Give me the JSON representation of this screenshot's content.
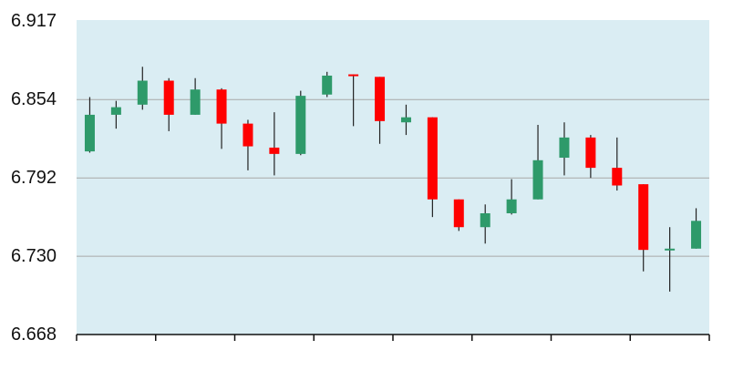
{
  "chart_data": {
    "type": "candlestick",
    "title": "",
    "xlabel": "",
    "ylabel": "",
    "ylim": [
      6.668,
      6.917
    ],
    "y_ticks": [
      "6.917",
      "6.854",
      "6.792",
      "6.730",
      "6.668"
    ],
    "grid": "horizontal",
    "legend": "none",
    "colors": {
      "plot_background": "#daedf3",
      "up": "#2e9a6a",
      "down": "#ff0000",
      "wick": "#222222",
      "gridline": "#a8a8a8",
      "axis": "#111111"
    },
    "candles": [
      {
        "open": 6.813,
        "high": 6.856,
        "low": 6.812,
        "close": 6.842
      },
      {
        "open": 6.842,
        "high": 6.853,
        "low": 6.831,
        "close": 6.848
      },
      {
        "open": 6.85,
        "high": 6.88,
        "low": 6.846,
        "close": 6.869
      },
      {
        "open": 6.869,
        "high": 6.871,
        "low": 6.829,
        "close": 6.842
      },
      {
        "open": 6.842,
        "high": 6.871,
        "low": 6.842,
        "close": 6.862
      },
      {
        "open": 6.862,
        "high": 6.863,
        "low": 6.815,
        "close": 6.835
      },
      {
        "open": 6.835,
        "high": 6.838,
        "low": 6.798,
        "close": 6.817
      },
      {
        "open": 6.816,
        "high": 6.844,
        "low": 6.794,
        "close": 6.811
      },
      {
        "open": 6.811,
        "high": 6.861,
        "low": 6.81,
        "close": 6.857
      },
      {
        "open": 6.858,
        "high": 6.876,
        "low": 6.856,
        "close": 6.873
      },
      {
        "open": 6.874,
        "high": 6.874,
        "low": 6.833,
        "close": 6.873
      },
      {
        "open": 6.872,
        "high": 6.872,
        "low": 6.819,
        "close": 6.837
      },
      {
        "open": 6.836,
        "high": 6.85,
        "low": 6.826,
        "close": 6.84
      },
      {
        "open": 6.84,
        "high": 6.84,
        "low": 6.761,
        "close": 6.775
      },
      {
        "open": 6.775,
        "high": 6.775,
        "low": 6.75,
        "close": 6.753
      },
      {
        "open": 6.753,
        "high": 6.771,
        "low": 6.74,
        "close": 6.764
      },
      {
        "open": 6.764,
        "high": 6.791,
        "low": 6.763,
        "close": 6.775
      },
      {
        "open": 6.775,
        "high": 6.834,
        "low": 6.775,
        "close": 6.806
      },
      {
        "open": 6.808,
        "high": 6.836,
        "low": 6.794,
        "close": 6.824
      },
      {
        "open": 6.824,
        "high": 6.826,
        "low": 6.792,
        "close": 6.8
      },
      {
        "open": 6.8,
        "high": 6.824,
        "low": 6.782,
        "close": 6.786
      },
      {
        "open": 6.787,
        "high": 6.787,
        "low": 6.718,
        "close": 6.735
      },
      {
        "open": 6.735,
        "high": 6.753,
        "low": 6.702,
        "close": 6.736
      },
      {
        "open": 6.736,
        "high": 6.768,
        "low": 6.736,
        "close": 6.758
      }
    ]
  }
}
